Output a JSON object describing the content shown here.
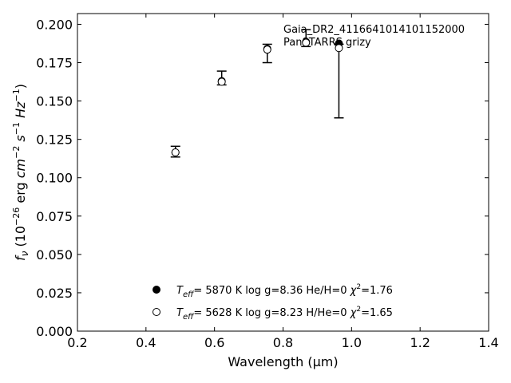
{
  "chart_data": {
    "type": "scatter",
    "xlabel": "Wavelength (μm)",
    "ylabel": "f_ν (10^-26 erg cm^-2 s^-1 Hz^-1)",
    "xlim": [
      0.2,
      1.4
    ],
    "ylim": [
      0.0,
      0.207
    ],
    "x_ticks": [
      "0.2",
      "0.4",
      "0.6",
      "0.8",
      "1.0",
      "1.2",
      "1.4"
    ],
    "y_ticks": [
      "0.000",
      "0.025",
      "0.050",
      "0.075",
      "0.100",
      "0.125",
      "0.150",
      "0.175",
      "0.200"
    ],
    "grid": false,
    "annotations": [
      "Gaia_DR2_4116641014101152000",
      "PanSTARRS grizy"
    ],
    "observed": {
      "x": [
        0.486,
        0.621,
        0.754,
        0.867,
        0.963
      ],
      "y": [
        0.117,
        0.165,
        0.181,
        0.191,
        0.163
      ],
      "err": [
        0.0035,
        0.0045,
        0.006,
        0.0055,
        0.024
      ]
    },
    "series": [
      {
        "name": "T_eff= 5870 K log g=8.36 He/H=0 χ²=1.76",
        "marker": "filled-circle",
        "x": [
          0.486,
          0.621,
          0.754,
          0.867,
          0.963
        ],
        "y": [
          0.1165,
          0.163,
          0.184,
          0.1885,
          0.1875
        ]
      },
      {
        "name": "T_eff= 5628 K log g=8.23 H/He=0 χ²=1.65",
        "marker": "open-circle",
        "x": [
          0.486,
          0.621,
          0.754,
          0.867,
          0.963
        ],
        "y": [
          0.1165,
          0.1625,
          0.1835,
          0.188,
          0.1845
        ]
      }
    ],
    "legend_placement": "bottom-center",
    "legend": [
      {
        "marker": "filled-circle",
        "t_label": "T",
        "t_sub": "eff",
        "text": "=  5870 K  log g=8.36  He/H=0  ",
        "chi_label": "χ",
        "chi_sup": "2",
        "chi_val": "=1.76"
      },
      {
        "marker": "open-circle",
        "t_label": "T",
        "t_sub": "eff",
        "text": "=  5628 K  log g=8.23  H/He=0  ",
        "chi_label": "χ",
        "chi_sup": "2",
        "chi_val": "=1.65"
      }
    ]
  }
}
